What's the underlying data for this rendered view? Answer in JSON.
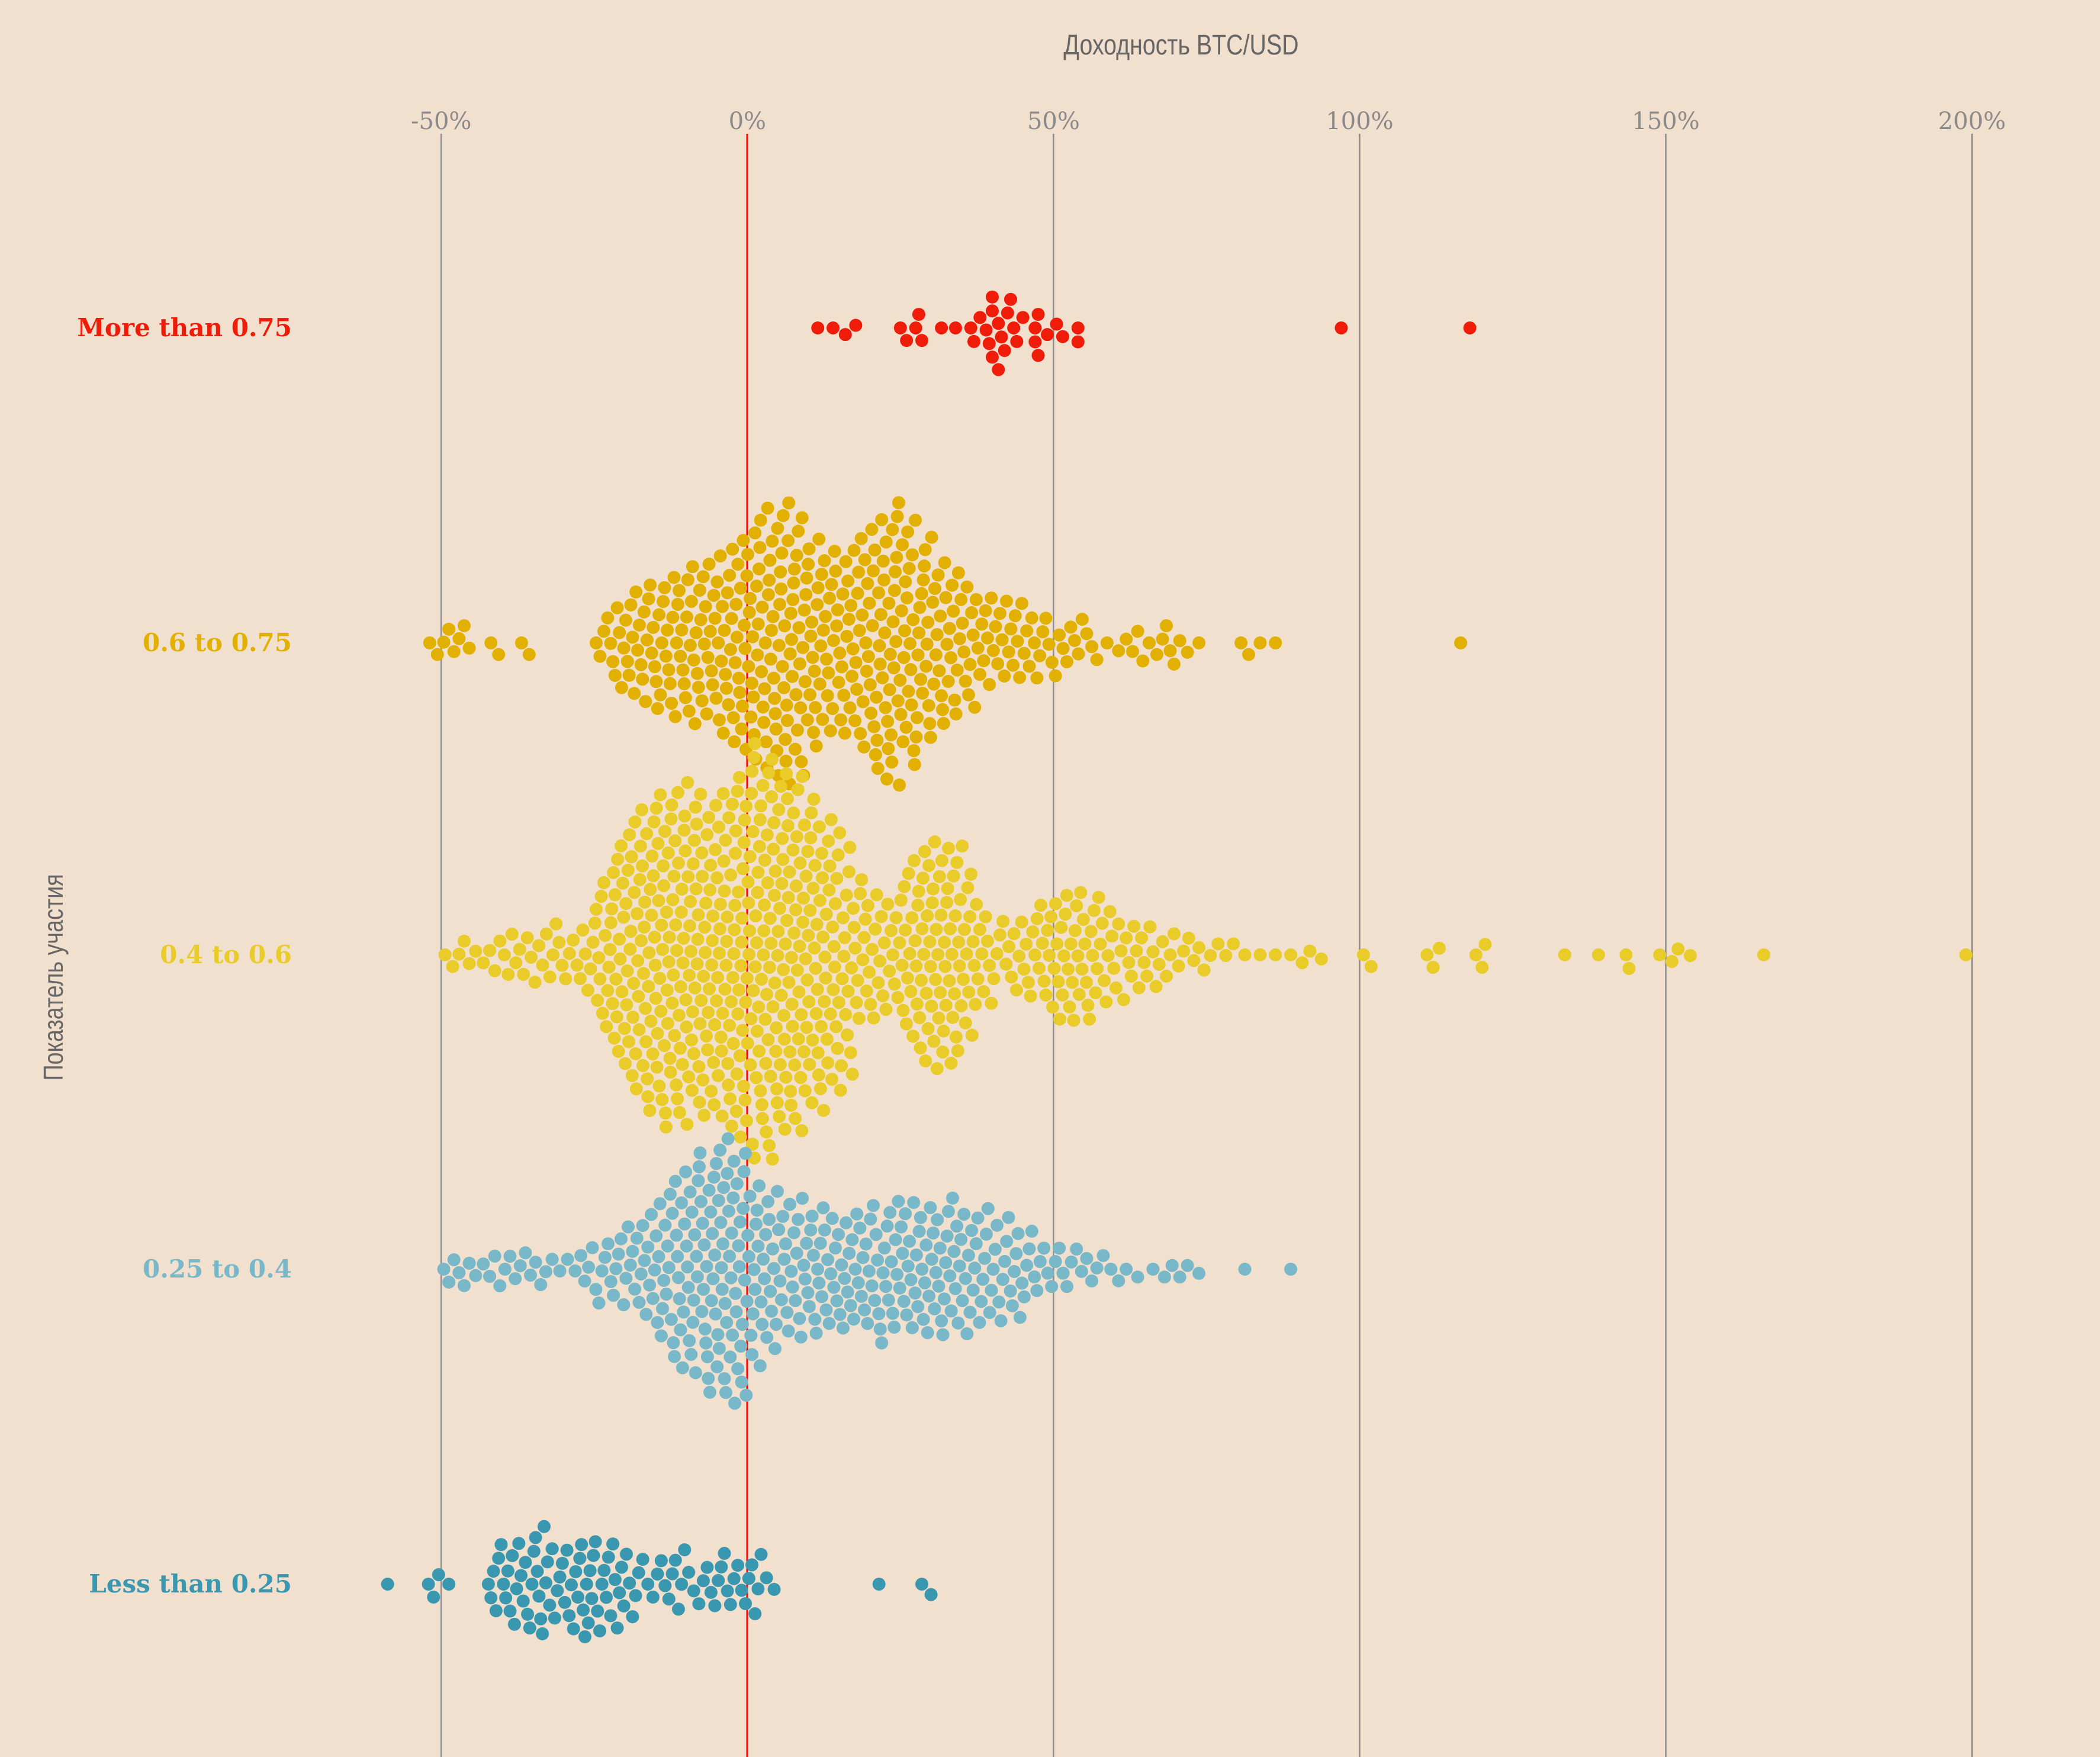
{
  "chart_data": {
    "type": "scatter",
    "subtype": "beeswarm",
    "title": "Доходность BTC/USD",
    "xlabel": "Доходность BTC/USD",
    "ylabel": "Показатель участия",
    "xlim": [
      -60,
      205
    ],
    "x_ticks": [
      -50,
      0,
      50,
      100,
      150,
      200
    ],
    "x_tick_labels": [
      "-50%",
      "0%",
      "50%",
      "100%",
      "150%",
      "200%"
    ],
    "reference_line": {
      "x": 0,
      "color": "#ff0000"
    },
    "grid": true,
    "bin_width": 2.5,
    "groups": [
      {
        "label": "More than 0.75",
        "color": "#ef1c0a",
        "points": [
          39,
          42,
          40,
          44,
          47.5,
          27.5,
          41,
          47,
          37,
          34,
          43,
          51.5,
          16,
          25,
          28.5,
          40,
          54,
          11.5,
          49,
          47,
          14,
          17.7,
          26,
          31.7,
          38,
          41.5,
          50.5,
          54,
          28,
          36.5,
          43.5,
          45,
          40,
          47.5,
          41,
          42.5,
          39.5,
          97,
          118
        ],
        "bin_start": null,
        "bin_counts": [],
        "outliers": []
      },
      {
        "label": "0.6 to 0.75",
        "color": "#e1b000",
        "points": [],
        "bin_start": -52.5,
        "bin_counts": [
          2,
          3,
          3,
          0,
          2,
          0,
          2,
          0,
          0,
          0,
          0,
          4,
          7,
          9,
          10,
          11,
          12,
          13,
          13,
          15,
          17,
          19,
          20,
          22,
          20,
          17,
          15,
          15,
          17,
          20,
          22,
          20,
          17,
          14,
          12,
          10,
          8,
          7,
          7,
          6,
          5,
          4,
          4,
          3,
          1,
          2,
          3,
          2,
          4,
          2,
          1,
          0,
          0,
          2,
          1,
          1
        ],
        "outliers": [
          116.5
        ]
      },
      {
        "label": "0.4 to 0.6",
        "color": "#e9cb2a",
        "points": [],
        "bin_start": -50,
        "bin_counts": [
          2,
          3,
          2,
          3,
          4,
          4,
          4,
          5,
          4,
          6,
          12,
          18,
          22,
          25,
          27,
          27,
          27,
          26,
          27,
          30,
          32,
          32,
          30,
          28,
          25,
          22,
          18,
          12,
          10,
          9,
          14,
          18,
          19,
          18,
          14,
          8,
          5,
          6,
          7,
          9,
          11,
          11,
          10,
          8,
          6,
          6,
          5,
          4,
          3,
          3,
          2,
          2,
          1,
          1,
          1,
          1,
          2,
          1,
          0,
          0,
          2
        ],
        "outliers": [
          111,
          112,
          113,
          119,
          120,
          120.5,
          133.5,
          139,
          143.5,
          144,
          149,
          151,
          152,
          154,
          166,
          199
        ]
      },
      {
        "label": "0.25 to 0.4",
        "color": "#79b8c8",
        "points": [],
        "bin_start": -50,
        "bin_counts": [
          3,
          3,
          2,
          3,
          3,
          3,
          3,
          2,
          2,
          4,
          5,
          6,
          7,
          9,
          12,
          15,
          17,
          19,
          21,
          20,
          15,
          13,
          11,
          11,
          11,
          10,
          10,
          10,
          11,
          11,
          11,
          11,
          11,
          11,
          10,
          9,
          8,
          8,
          6,
          4,
          4,
          3,
          3,
          2,
          2,
          1,
          1,
          2,
          2,
          1,
          0,
          0,
          1,
          0,
          0,
          1
        ],
        "outliers": []
      },
      {
        "label": "Less than 0.25",
        "color": "#3a97b0",
        "points": [],
        "bin_start": -60,
        "bin_counts": [
          1,
          0,
          0,
          3,
          1,
          0,
          0,
          6,
          7,
          7,
          9,
          6,
          7,
          9,
          7,
          7,
          5,
          3,
          4,
          5,
          3,
          4,
          5,
          4,
          5,
          2
        ],
        "outliers": [
          21.5,
          28.5,
          30
        ]
      }
    ]
  }
}
